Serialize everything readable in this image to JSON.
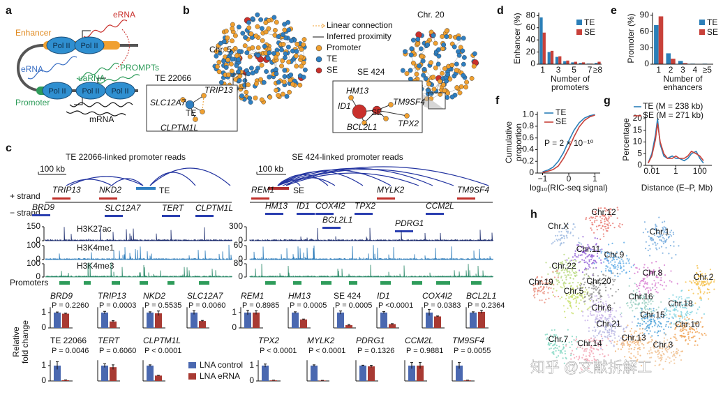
{
  "a": {
    "label": "a",
    "enhancer": "Enhancer",
    "erna_top": "eRNA",
    "erna_left": "eRNA",
    "pol2": [
      "Pol II",
      "Pol II",
      "Pol II",
      "Pol II",
      "Pol II"
    ],
    "prompts": "PROMPTs",
    "uarna": "uaRNA",
    "promoter": "Promoter",
    "mrna": "mRNA"
  },
  "b": {
    "label": "b",
    "legend": [
      "Linear connection",
      "Inferred proximity",
      "Promoter",
      "TE",
      "SE"
    ],
    "chr5": "Chr. 5",
    "chr20": "Chr. 20",
    "te_title": "TE 22066",
    "te_nodes": [
      "SLC12A7",
      "TRIP13",
      "TE",
      "CLPTM1L"
    ],
    "se_title": "SE 424",
    "se_nodes": [
      "HM13",
      "TM9SF4",
      "ID1",
      "SE",
      "BCL2L1",
      "TPX2"
    ]
  },
  "c": {
    "label": "c",
    "left_title": "TE 22066-linked promoter reads",
    "right_title": "SE 424-linked promoter reads",
    "scale": [
      "100 kb",
      "100 kb"
    ],
    "plus_strand": "+ strand",
    "minus_strand": "− strand",
    "left_plus": [
      "TRIP13",
      "NKD2",
      "TE"
    ],
    "left_minus": [
      "BRD9",
      "SLC12A7",
      "TERT",
      "CLPTM1L"
    ],
    "right_plus": [
      "REM1",
      "SE",
      "MYLK2",
      "TM9SF4"
    ],
    "right_minus": [
      "HM13",
      "ID1",
      "COX4I2",
      "TPX2",
      "CCM2L",
      "BCL2L1",
      "PDRG1"
    ],
    "tracks": [
      {
        "name": "H3K27ac",
        "left_ticks": [
          0,
          150
        ],
        "right_ticks": [
          0,
          300
        ]
      },
      {
        "name": "H3K4me1",
        "left_ticks": [
          0,
          100
        ],
        "right_ticks": [
          0,
          60
        ]
      },
      {
        "name": "H3K4me3",
        "left_ticks": [
          0,
          100
        ],
        "right_ticks": [
          0,
          80
        ]
      }
    ],
    "promoters": "Promoters",
    "bars": {
      "type": "bar",
      "ylabel": [
        "Relative",
        "fold change"
      ],
      "ylim": [
        0,
        1.4
      ],
      "yticks": [
        0,
        1
      ],
      "series": [
        {
          "name": "LNA control",
          "color": "#4a68b0"
        },
        {
          "name": "LNA eRNA",
          "color": "#a83a33"
        }
      ],
      "genes": [
        {
          "name": "BRD9",
          "p": "P = 0.2260",
          "values": [
            1,
            0.93
          ],
          "errors": [
            0.04,
            0.03
          ]
        },
        {
          "name": "TRIP13",
          "p": "P = 0.0003",
          "values": [
            1,
            0.42
          ],
          "errors": [
            0.08,
            0.05
          ]
        },
        {
          "name": "NKD2",
          "p": "P = 0.5535",
          "values": [
            1,
            0.95
          ],
          "errors": [
            0.05,
            0.15
          ]
        },
        {
          "name": "SLC12A7",
          "p": "P = 0.0060",
          "values": [
            1,
            0.45
          ],
          "errors": [
            0.12,
            0.04
          ]
        },
        {
          "name": "REM1",
          "p": "P = 0.8985",
          "values": [
            1,
            1.0
          ],
          "errors": [
            0.15,
            0.12
          ]
        },
        {
          "name": "HM13",
          "p": "P = 0.0005",
          "values": [
            1,
            0.55
          ],
          "errors": [
            0.05,
            0.03
          ]
        },
        {
          "name": "SE 424",
          "p": "P = 0.0005",
          "values": [
            1,
            0.18
          ],
          "errors": [
            0.1,
            0.04
          ]
        },
        {
          "name": "ID1",
          "p": "P <0.0001",
          "values": [
            1,
            0.25
          ],
          "errors": [
            0.06,
            0.03
          ]
        },
        {
          "name": "COX4I2",
          "p": "P = 0.0383",
          "values": [
            1,
            0.75
          ],
          "errors": [
            0.2,
            0.03
          ]
        },
        {
          "name": "BCL2L1",
          "p": "P = 0.2364",
          "values": [
            1,
            1.05
          ],
          "errors": [
            0.05,
            0.1
          ]
        },
        {
          "name": "TE 22066",
          "p": "P = 0.0046",
          "values": [
            1,
            0.05
          ],
          "errors": [
            0.25,
            0.02
          ]
        },
        {
          "name": "TERT",
          "p": "P = 0.6060",
          "values": [
            1,
            0.9
          ],
          "errors": [
            0.12,
            0.15
          ]
        },
        {
          "name": "CLPTM1L",
          "p": "P < 0.0001",
          "values": [
            1,
            0.35
          ],
          "errors": [
            0.05,
            0.02
          ]
        },
        {
          "name": "TPX2",
          "p": "P < 0.0001",
          "values": [
            1,
            0.04
          ],
          "errors": [
            0.1,
            0.01
          ]
        },
        {
          "name": "MYLK2",
          "p": "P < 0.0001",
          "values": [
            1,
            0.03
          ],
          "errors": [
            0.05,
            0.01
          ]
        },
        {
          "name": "PDRG1",
          "p": "P = 0.1326",
          "values": [
            1,
            0.95
          ],
          "errors": [
            0.03,
            0.07
          ]
        },
        {
          "name": "CCM2L",
          "p": "P = 0.9881",
          "values": [
            1,
            1.0
          ],
          "errors": [
            0.2,
            0.2
          ]
        },
        {
          "name": "TM9SF4",
          "p": "P = 0.0055",
          "values": [
            1,
            0.04
          ],
          "errors": [
            0.2,
            0.01
          ]
        }
      ]
    }
  },
  "d": {
    "label": "d",
    "type": "bar",
    "ylabel": "Enhancer (%)",
    "xlabel": [
      "Number of",
      "promoters"
    ],
    "categories": [
      "1",
      null,
      "3",
      null,
      "5",
      null,
      "7",
      "≥8"
    ],
    "series": [
      {
        "name": "TE",
        "color": "#2b7fb8",
        "values": [
          77,
          20,
          12,
          5,
          3,
          2,
          1,
          2
        ]
      },
      {
        "name": "SE",
        "color": "#c8413a",
        "values": [
          52,
          22,
          13,
          6,
          4,
          3,
          1,
          4
        ]
      }
    ],
    "ylim": [
      0,
      85
    ],
    "yticks": [
      0,
      20,
      40,
      60,
      80
    ]
  },
  "e": {
    "label": "e",
    "type": "bar",
    "ylabel": "Promoter (%)",
    "xlabel": [
      "Number of",
      "enhancers"
    ],
    "categories": [
      "1",
      "2",
      "3",
      "4",
      "≥5"
    ],
    "series": [
      {
        "name": "TE",
        "color": "#2b7fb8",
        "values": [
          72,
          20,
          6,
          1,
          1
        ]
      },
      {
        "name": "SE",
        "color": "#c8413a",
        "values": [
          88,
          10,
          2,
          0.5,
          0.5
        ]
      }
    ],
    "ylim": [
      0,
      95
    ],
    "yticks": [
      0,
      30,
      60,
      90
    ]
  },
  "f": {
    "label": "f",
    "type": "line",
    "ylabel": [
      "Cumulative",
      "proportion"
    ],
    "xlabel": "log₁₀(RIC-seq signal)",
    "annotation": "P = 2 × 10⁻¹⁰",
    "x": [
      -1,
      -0.8,
      -0.6,
      -0.4,
      -0.2,
      0,
      0.2,
      0.4,
      0.6,
      0.8,
      1
    ],
    "series": [
      {
        "name": "TE",
        "color": "#2b7fb8",
        "values": [
          0.02,
          0.05,
          0.1,
          0.2,
          0.35,
          0.55,
          0.73,
          0.86,
          0.94,
          0.98,
          1.0
        ]
      },
      {
        "name": "SE",
        "color": "#c8413a",
        "values": [
          0.01,
          0.03,
          0.06,
          0.12,
          0.25,
          0.42,
          0.62,
          0.79,
          0.9,
          0.96,
          0.99
        ]
      }
    ],
    "xlim": [
      -1.2,
      1.2
    ],
    "ylim": [
      0,
      1.05
    ],
    "xticks": [
      {
        "value": -1,
        "label": "−1"
      },
      0,
      1
    ],
    "yticks": [
      0,
      0.2,
      0.4,
      0.6,
      0.8,
      {
        "value": 1,
        "label": "1.0"
      }
    ]
  },
  "g": {
    "label": "g",
    "type": "line",
    "ylabel": "Percentage",
    "xlabel": "Distance (E–P, Mb)",
    "log_x": true,
    "x": [
      0.005,
      0.01,
      0.02,
      0.03,
      0.05,
      0.1,
      0.2,
      0.5,
      1,
      2,
      5,
      10,
      20,
      50,
      100,
      200
    ],
    "series": [
      {
        "name": "TE (M = 238 kb)",
        "color": "#2b7fb8",
        "values": [
          1,
          5,
          13,
          20,
          9,
          4,
          3,
          4,
          3,
          3,
          2,
          3,
          5,
          6,
          3,
          1
        ]
      },
      {
        "name": "SE (M = 271 kb)",
        "color": "#c8413a",
        "values": [
          1,
          4,
          11,
          18,
          10,
          5,
          3,
          3,
          4,
          3,
          3,
          4,
          6,
          5,
          4,
          2
        ]
      }
    ],
    "xlim": [
      0.003,
      1000
    ],
    "ylim": [
      0,
      23
    ],
    "xticks": [
      0.01,
      1,
      100
    ],
    "yticks": [
      0,
      5,
      10,
      15,
      20
    ]
  },
  "h": {
    "label": "h",
    "chromosomes": [
      "Chr.12",
      "Chr.X",
      "Chr.1",
      "Chr.11",
      "Chr.9",
      "Chr.22",
      "Chr.8",
      "Chr.2",
      "Chr.19",
      "Chr.5",
      "Chr.20",
      "Chr.16",
      "Chr.6",
      "Chr.18",
      "Chr.15",
      "Chr.10",
      "Chr.21",
      "Chr.7",
      "Chr.14",
      "Chr.13",
      "Chr.3"
    ]
  },
  "watermark": "知乎 @文献拆解工"
}
